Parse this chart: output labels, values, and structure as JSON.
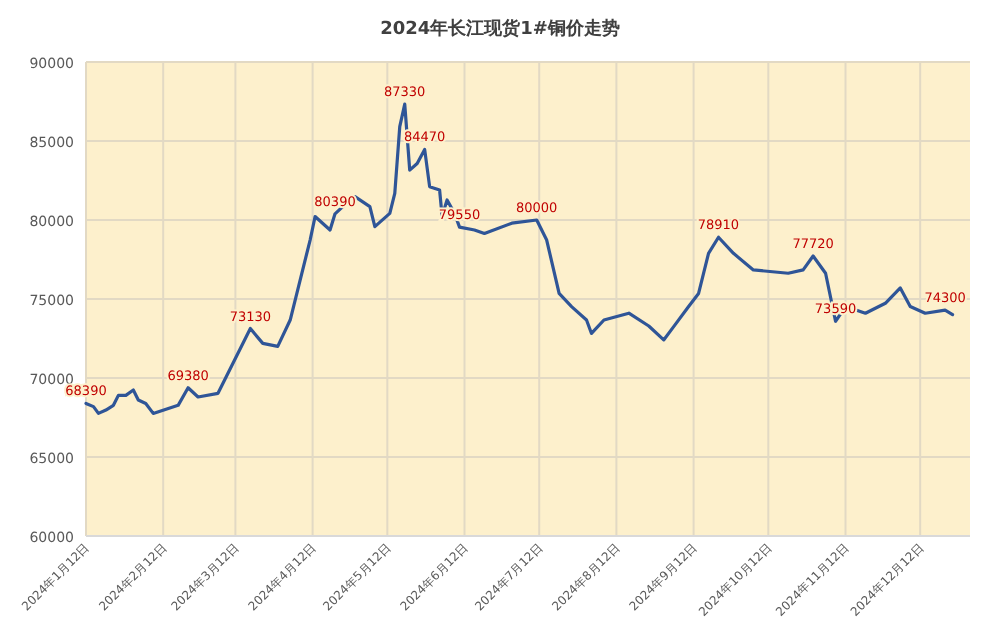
{
  "chart_data": {
    "type": "line",
    "title": "2024年长江现货1#铜价走势",
    "x": [
      "2024-01-12",
      "2024-01-15",
      "2024-01-17",
      "2024-01-20",
      "2024-01-23",
      "2024-01-25",
      "2024-01-28",
      "2024-01-31",
      "2024-02-02",
      "2024-02-05",
      "2024-02-08",
      "2024-02-18",
      "2024-02-22",
      "2024-02-26",
      "2024-03-05",
      "2024-03-18",
      "2024-03-23",
      "2024-03-29",
      "2024-04-03",
      "2024-04-11",
      "2024-04-13",
      "2024-04-19",
      "2024-04-21",
      "2024-04-27",
      "2024-04-29",
      "2024-05-05",
      "2024-05-07",
      "2024-05-13",
      "2024-05-15",
      "2024-05-17",
      "2024-05-19",
      "2024-05-21",
      "2024-05-24",
      "2024-05-27",
      "2024-05-29",
      "2024-06-02",
      "2024-06-03",
      "2024-06-05",
      "2024-06-08",
      "2024-06-10",
      "2024-06-16",
      "2024-06-20",
      "2024-07-01",
      "2024-07-11",
      "2024-07-15",
      "2024-07-20",
      "2024-07-25",
      "2024-07-31",
      "2024-08-02",
      "2024-08-07",
      "2024-08-17",
      "2024-08-25",
      "2024-08-31",
      "2024-09-04",
      "2024-09-10",
      "2024-09-14",
      "2024-09-18",
      "2024-09-22",
      "2024-09-28",
      "2024-10-06",
      "2024-10-20",
      "2024-10-26",
      "2024-10-30",
      "2024-11-04",
      "2024-11-08",
      "2024-11-12",
      "2024-11-20",
      "2024-11-28",
      "2024-12-04",
      "2024-12-08",
      "2024-12-14",
      "2024-12-22",
      "2024-12-25"
    ],
    "series": [
      {
        "color": "#2f5597",
        "values": [
          68390,
          68190,
          67760,
          67970,
          68270,
          68900,
          68900,
          69240,
          68610,
          68390,
          67760,
          68270,
          69380,
          68800,
          69030,
          73130,
          72190,
          72000,
          73670,
          78730,
          80220,
          79370,
          80390,
          81270,
          81480,
          80850,
          79580,
          80420,
          81690,
          85910,
          87330,
          83160,
          83580,
          84470,
          82110,
          81900,
          80250,
          81270,
          80420,
          79550,
          79370,
          79150,
          79800,
          80000,
          78730,
          75350,
          74520,
          73670,
          72820,
          73670,
          74100,
          73290,
          72410,
          73250,
          74520,
          75350,
          77890,
          78910,
          77890,
          76840,
          76630,
          76840,
          77720,
          76630,
          73590,
          74520,
          74100,
          74730,
          75700,
          74520,
          74100,
          74300,
          74010
        ],
        "value_labels": [
          "68390",
          null,
          null,
          null,
          null,
          null,
          null,
          null,
          null,
          null,
          null,
          null,
          "69380",
          null,
          null,
          "73130",
          null,
          null,
          null,
          null,
          null,
          null,
          "80390",
          null,
          null,
          null,
          null,
          null,
          null,
          null,
          "87330",
          null,
          null,
          "84470",
          null,
          null,
          null,
          null,
          null,
          "79550",
          null,
          null,
          null,
          "80000",
          null,
          null,
          null,
          null,
          null,
          null,
          null,
          null,
          null,
          null,
          null,
          null,
          null,
          "78910",
          null,
          null,
          null,
          null,
          "77720",
          null,
          "73590",
          null,
          null,
          null,
          null,
          null,
          null,
          "74300",
          null
        ]
      }
    ],
    "xlim": [
      "2024-01-12",
      "2025-01-01"
    ],
    "xticks": [
      {
        "value": "2024-01-12",
        "label": "2024年1月12日"
      },
      {
        "value": "2024-02-12",
        "label": "2024年2月12日"
      },
      {
        "value": "2024-03-12",
        "label": "2024年3月12日"
      },
      {
        "value": "2024-04-12",
        "label": "2024年4月12日"
      },
      {
        "value": "2024-05-12",
        "label": "2024年5月12日"
      },
      {
        "value": "2024-06-12",
        "label": "2024年6月12日"
      },
      {
        "value": "2024-07-12",
        "label": "2024年7月12日"
      },
      {
        "value": "2024-08-12",
        "label": "2024年8月12日"
      },
      {
        "value": "2024-09-12",
        "label": "2024年9月12日"
      },
      {
        "value": "2024-10-12",
        "label": "2024年10月12日"
      },
      {
        "value": "2024-11-12",
        "label": "2024年11月12日"
      },
      {
        "value": "2024-12-12",
        "label": "2024年12月12日"
      }
    ],
    "ylim": [
      60000,
      90000
    ],
    "yticks": [
      60000,
      65000,
      70000,
      75000,
      80000,
      85000,
      90000
    ],
    "grid": true
  }
}
